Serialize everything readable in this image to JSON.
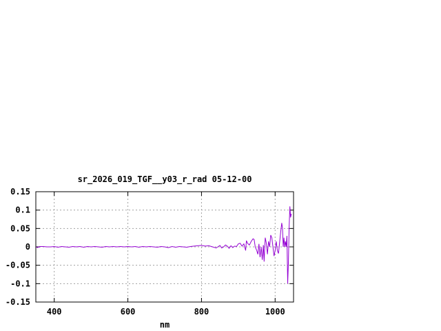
{
  "chart_data": {
    "type": "line",
    "title": "sr_2026_019_TGF__y03_r_rad 05-12-00",
    "xlabel": "nm",
    "ylabel": "",
    "xlim": [
      350,
      1050
    ],
    "ylim": [
      -0.15,
      0.15
    ],
    "xticks": [
      400,
      600,
      800,
      1000
    ],
    "xtick_labels": [
      "400",
      "600",
      "800",
      "1000"
    ],
    "yticks": [
      -0.15,
      -0.1,
      -0.05,
      0,
      0.05,
      0.1,
      0.15
    ],
    "ytick_labels": [
      "-0.15",
      "-0.1",
      "-0.05",
      "0",
      "0.05",
      "0.1",
      "0.15"
    ],
    "grid": true,
    "line_color": "#9400d3",
    "series": [
      {
        "x": [
          350,
          355,
          360,
          370,
          380,
          390,
          400,
          410,
          420,
          430,
          440,
          450,
          460,
          470,
          480,
          490,
          500,
          510,
          520,
          530,
          540,
          550,
          560,
          570,
          580,
          590,
          600,
          610,
          620,
          630,
          640,
          650,
          660,
          670,
          680,
          690,
          700,
          710,
          720,
          730,
          740,
          750,
          760,
          770,
          780,
          790,
          800,
          810,
          820,
          830,
          840,
          850,
          855,
          860,
          865,
          870,
          875,
          880,
          885,
          890,
          895,
          900,
          905,
          910,
          915,
          920,
          922,
          925,
          930,
          935,
          940,
          943,
          946,
          950,
          953,
          956,
          959,
          962,
          965,
          968,
          970,
          973,
          976,
          979,
          982,
          985,
          988,
          991,
          994,
          997,
          1000,
          1003,
          1006,
          1009,
          1012,
          1015,
          1018,
          1020,
          1022,
          1024,
          1026,
          1028,
          1030,
          1032,
          1034,
          1036,
          1038,
          1040,
          1042,
          1044
        ],
        "y": [
          0.0,
          -0.002,
          0.001,
          0.001,
          0.0,
          0.0,
          0.001,
          -0.001,
          0.001,
          0.0,
          -0.001,
          0.001,
          0.0,
          0.001,
          -0.001,
          0.001,
          0.0,
          0.001,
          0.0,
          -0.001,
          0.001,
          0.0,
          0.001,
          0.0,
          0.001,
          0.0,
          0.001,
          0.0,
          0.001,
          -0.001,
          0.001,
          0.0,
          0.001,
          0.0,
          -0.001,
          0.001,
          0.0,
          -0.002,
          0.001,
          -0.001,
          0.001,
          0.0,
          -0.001,
          0.001,
          0.002,
          0.003,
          0.004,
          0.002,
          0.003,
          0.0,
          -0.003,
          0.004,
          -0.003,
          0.0,
          0.005,
          0.002,
          -0.004,
          0.003,
          -0.002,
          0.002,
          0.001,
          0.008,
          0.01,
          0.002,
          0.008,
          -0.01,
          0.017,
          0.01,
          0.005,
          0.015,
          0.022,
          0.02,
          0.0,
          -0.01,
          -0.02,
          0.008,
          -0.028,
          0.0,
          -0.035,
          0.005,
          -0.04,
          0.025,
          0.01,
          -0.02,
          0.015,
          0.0,
          0.032,
          0.025,
          0.0,
          -0.025,
          -0.01,
          0.015,
          -0.01,
          -0.018,
          0.01,
          0.04,
          0.065,
          0.05,
          0.0,
          0.025,
          0.0,
          0.015,
          0.0,
          0.03,
          -0.1,
          -0.045,
          0.055,
          0.11,
          0.08,
          0.09
        ]
      }
    ]
  }
}
